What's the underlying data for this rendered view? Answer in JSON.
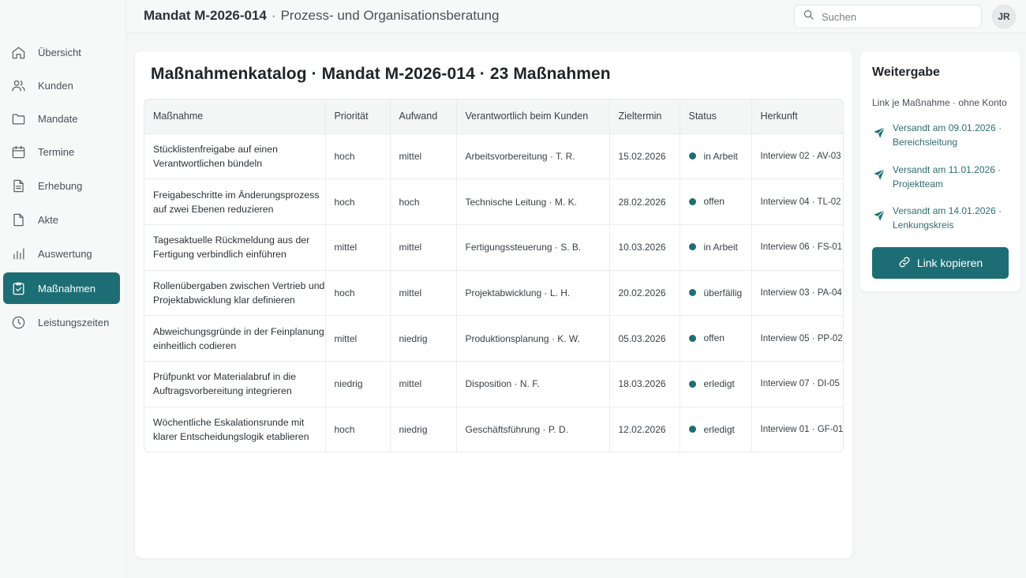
{
  "topbar": {
    "mandate": "Mandat M-2026-014",
    "separator": "·",
    "subtitle": "Prozess- und Organisationsberatung",
    "search_placeholder": "Suchen",
    "avatar_initials": "JR"
  },
  "sidebar": {
    "items": [
      {
        "label": "Übersicht",
        "icon": "home-icon"
      },
      {
        "label": "Kunden",
        "icon": "users-icon"
      },
      {
        "label": "Mandate",
        "icon": "folder-icon"
      },
      {
        "label": "Termine",
        "icon": "calendar-icon"
      },
      {
        "label": "Erhebung",
        "icon": "document-icon"
      },
      {
        "label": "Akte",
        "icon": "file-icon"
      },
      {
        "label": "Auswertung",
        "icon": "bar-chart-icon"
      },
      {
        "label": "Maßnahmen",
        "icon": "checklist-icon",
        "active": true
      },
      {
        "label": "Leistungszeiten",
        "icon": "clock-icon"
      }
    ]
  },
  "catalog": {
    "title": "Maßnahmenkatalog · Mandat M-2026-014 · 23 Maßnahmen",
    "columns": [
      "Maßnahme",
      "Priorität",
      "Aufwand",
      "Verantwortlich beim Kunden",
      "Zieltermin",
      "Status",
      "Herkunft"
    ],
    "rows": [
      {
        "measure": "Stücklistenfreigabe auf einen Verantwortlichen bündeln",
        "priority": "hoch",
        "effort": "mittel",
        "owner": "Arbeitsvorbereitung · T. R.",
        "due": "15.02.2026",
        "status": "in Arbeit",
        "origin": "Interview 02 · AV-03"
      },
      {
        "measure": "Freigabeschritte im Änderungsprozess auf zwei Ebenen reduzieren",
        "priority": "hoch",
        "effort": "hoch",
        "owner": "Technische Leitung · M. K.",
        "due": "28.02.2026",
        "status": "offen",
        "origin": "Interview 04 · TL-02"
      },
      {
        "measure": "Tagesaktuelle Rückmeldung aus der Fertigung verbindlich einführen",
        "priority": "mittel",
        "effort": "mittel",
        "owner": "Fertigungssteuerung · S. B.",
        "due": "10.03.2026",
        "status": "in Arbeit",
        "origin": "Interview 06 · FS-01"
      },
      {
        "measure": "Rollenübergaben zwischen Vertrieb und Projektabwicklung klar definieren",
        "priority": "hoch",
        "effort": "mittel",
        "owner": "Projektabwicklung · L. H.",
        "due": "20.02.2026",
        "status": "überfällig",
        "origin": "Interview 03 · PA-04"
      },
      {
        "measure": "Abweichungsgründe in der Feinplanung einheitlich codieren",
        "priority": "mittel",
        "effort": "niedrig",
        "owner": "Produktionsplanung · K. W.",
        "due": "05.03.2026",
        "status": "offen",
        "origin": "Interview 05 · PP-02"
      },
      {
        "measure": "Prüfpunkt vor Materialabruf in die Auftragsvorbereitung integrieren",
        "priority": "niedrig",
        "effort": "mittel",
        "owner": "Disposition · N. F.",
        "due": "18.03.2026",
        "status": "erledigt",
        "origin": "Interview 07 · DI-05"
      },
      {
        "measure": "Wöchentliche Eskalationsrunde mit klarer Entscheidungslogik etablieren",
        "priority": "hoch",
        "effort": "niedrig",
        "owner": "Geschäftsführung · P. D.",
        "due": "12.02.2026",
        "status": "erledigt",
        "origin": "Interview 01 · GF-01"
      }
    ]
  },
  "share": {
    "title": "Weitergabe",
    "subtitle": "Link je Maßnahme · ohne Konto",
    "items": [
      {
        "text": "Versandt am 09.01.2026 · Bereichsleitung"
      },
      {
        "text": "Versandt am 11.01.2026 · Projektteam"
      },
      {
        "text": "Versandt am 14.01.2026 · Lenkungskreis"
      }
    ],
    "button_label": "Link kopieren"
  },
  "colors": {
    "accent": "#1d6e74",
    "status_dot": "#1d6e74",
    "background": "#f5f6f6"
  }
}
